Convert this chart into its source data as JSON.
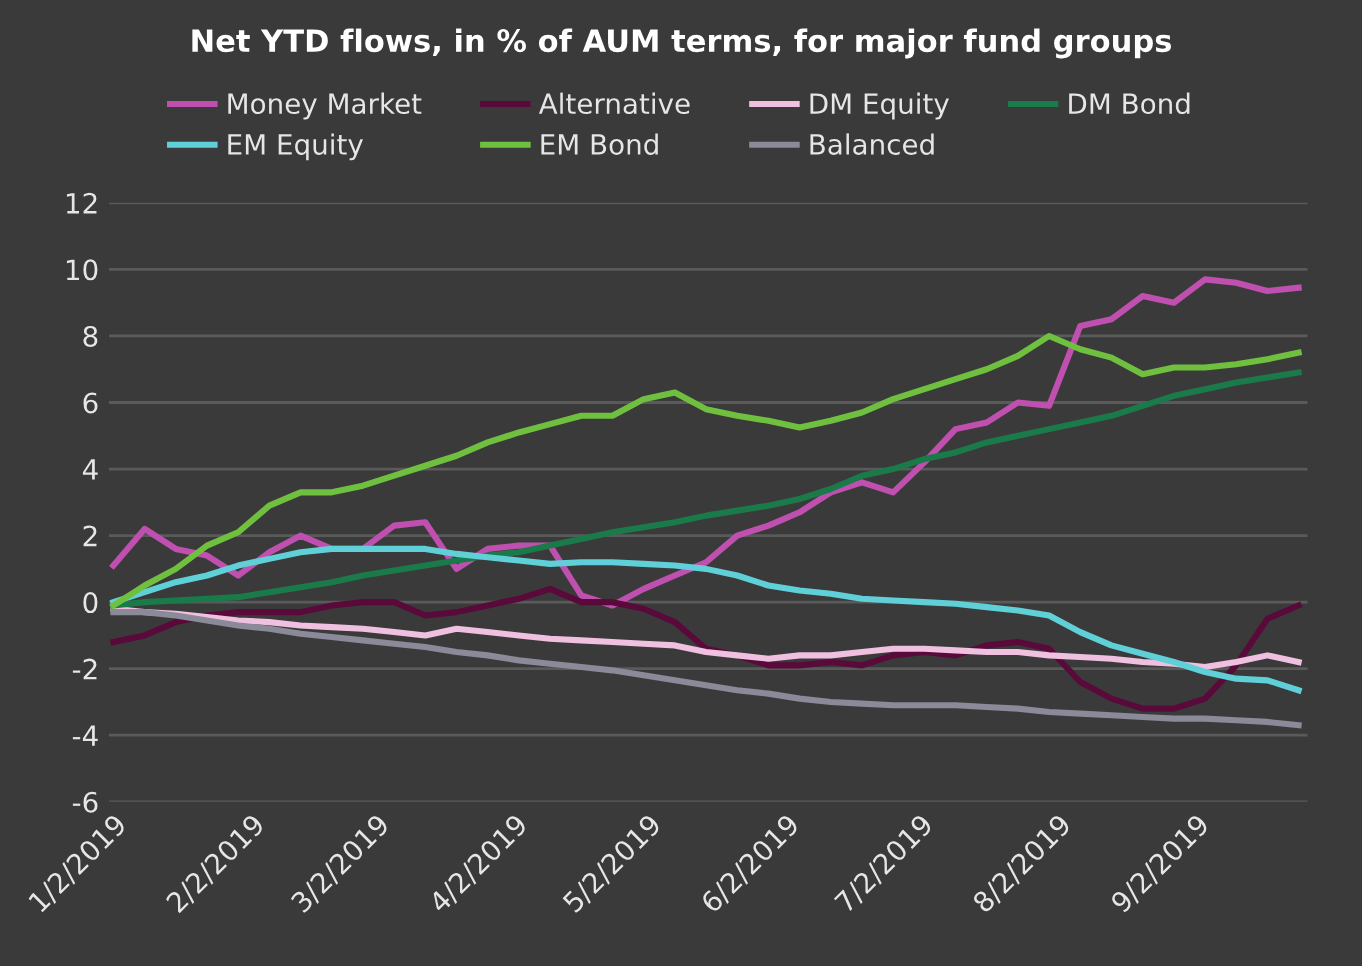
{
  "chart_data": {
    "type": "line",
    "title": "Net YTD flows, in % of AUM terms, for major fund groups",
    "x": [
      "2019-01-02",
      "2019-01-09",
      "2019-01-16",
      "2019-01-23",
      "2019-01-30",
      "2019-02-06",
      "2019-02-13",
      "2019-02-20",
      "2019-02-27",
      "2019-03-06",
      "2019-03-13",
      "2019-03-20",
      "2019-03-27",
      "2019-04-03",
      "2019-04-10",
      "2019-04-17",
      "2019-04-24",
      "2019-05-01",
      "2019-05-08",
      "2019-05-15",
      "2019-05-22",
      "2019-05-29",
      "2019-06-05",
      "2019-06-12",
      "2019-06-19",
      "2019-06-26",
      "2019-07-03",
      "2019-07-10",
      "2019-07-17",
      "2019-07-24",
      "2019-07-31",
      "2019-08-07",
      "2019-08-14",
      "2019-08-21",
      "2019-08-28",
      "2019-09-04",
      "2019-09-11",
      "2019-09-18",
      "2019-09-25"
    ],
    "series": [
      {
        "name": "Money Market",
        "color": "#c050b0",
        "values": [
          1.1,
          2.2,
          1.6,
          1.4,
          0.8,
          1.5,
          2.0,
          1.6,
          1.6,
          2.3,
          2.4,
          1.0,
          1.6,
          1.7,
          1.7,
          0.2,
          -0.1,
          0.4,
          0.8,
          1.2,
          2.0,
          2.3,
          2.7,
          3.3,
          3.6,
          3.3,
          4.2,
          5.2,
          5.4,
          6.0,
          5.9,
          8.3,
          8.5,
          9.2,
          9.0,
          9.7,
          9.6,
          9.35,
          9.45
        ]
      },
      {
        "name": "Alternative",
        "color": "#5a0a3a",
        "values": [
          -1.2,
          -1.0,
          -0.6,
          -0.4,
          -0.3,
          -0.3,
          -0.3,
          -0.1,
          0.0,
          0.0,
          -0.4,
          -0.3,
          -0.1,
          0.1,
          0.4,
          0.0,
          0.0,
          -0.2,
          -0.6,
          -1.4,
          -1.6,
          -1.9,
          -1.9,
          -1.8,
          -1.9,
          -1.6,
          -1.5,
          -1.6,
          -1.3,
          -1.2,
          -1.4,
          -2.4,
          -2.9,
          -3.2,
          -3.2,
          -2.9,
          -1.9,
          -0.5,
          -0.1
        ]
      },
      {
        "name": "DM Equity",
        "color": "#f0c0e0",
        "values": [
          -0.2,
          -0.3,
          -0.35,
          -0.45,
          -0.55,
          -0.6,
          -0.7,
          -0.75,
          -0.8,
          -0.9,
          -1.0,
          -0.8,
          -0.9,
          -1.0,
          -1.1,
          -1.15,
          -1.2,
          -1.25,
          -1.3,
          -1.5,
          -1.6,
          -1.7,
          -1.6,
          -1.6,
          -1.5,
          -1.4,
          -1.4,
          -1.45,
          -1.5,
          -1.5,
          -1.6,
          -1.65,
          -1.7,
          -1.8,
          -1.85,
          -1.95,
          -1.8,
          -1.6,
          -1.8
        ]
      },
      {
        "name": "DM Bond",
        "color": "#1a7a4a",
        "values": [
          -0.1,
          0.0,
          0.05,
          0.1,
          0.15,
          0.3,
          0.45,
          0.6,
          0.8,
          0.95,
          1.1,
          1.25,
          1.4,
          1.5,
          1.7,
          1.9,
          2.1,
          2.25,
          2.4,
          2.6,
          2.75,
          2.9,
          3.1,
          3.4,
          3.8,
          4.0,
          4.3,
          4.5,
          4.8,
          5.0,
          5.2,
          5.4,
          5.6,
          5.9,
          6.2,
          6.4,
          6.6,
          6.75,
          6.9
        ]
      },
      {
        "name": "EM Equity",
        "color": "#60d0d8",
        "values": [
          0.0,
          0.3,
          0.6,
          0.8,
          1.1,
          1.3,
          1.5,
          1.6,
          1.6,
          1.6,
          1.6,
          1.45,
          1.35,
          1.25,
          1.15,
          1.2,
          1.2,
          1.15,
          1.1,
          1.0,
          0.8,
          0.5,
          0.35,
          0.25,
          0.1,
          0.05,
          0.0,
          -0.05,
          -0.15,
          -0.25,
          -0.4,
          -0.9,
          -1.3,
          -1.55,
          -1.8,
          -2.1,
          -2.3,
          -2.35,
          -2.65
        ]
      },
      {
        "name": "EM Bond",
        "color": "#70c040",
        "values": [
          -0.1,
          0.5,
          1.0,
          1.7,
          2.1,
          2.9,
          3.3,
          3.3,
          3.5,
          3.8,
          4.1,
          4.4,
          4.8,
          5.1,
          5.35,
          5.6,
          5.6,
          6.1,
          6.3,
          5.8,
          5.6,
          5.45,
          5.25,
          5.45,
          5.7,
          6.1,
          6.4,
          6.7,
          7.0,
          7.4,
          8.0,
          7.6,
          7.35,
          6.85,
          7.05,
          7.05,
          7.15,
          7.3,
          7.5
        ]
      },
      {
        "name": "Balanced",
        "color": "#8a8a98",
        "values": [
          -0.3,
          -0.3,
          -0.4,
          -0.55,
          -0.7,
          -0.8,
          -0.95,
          -1.05,
          -1.15,
          -1.25,
          -1.35,
          -1.5,
          -1.6,
          -1.75,
          -1.85,
          -1.95,
          -2.05,
          -2.2,
          -2.35,
          -2.5,
          -2.65,
          -2.75,
          -2.9,
          -3.0,
          -3.05,
          -3.1,
          -3.1,
          -3.1,
          -3.15,
          -3.2,
          -3.3,
          -3.35,
          -3.4,
          -3.45,
          -3.5,
          -3.5,
          -3.55,
          -3.6,
          -3.7
        ]
      }
    ],
    "xlim": [
      "2019-01-01",
      "2019-09-27"
    ],
    "xticks": [
      {
        "value": "2019-01-02",
        "label": "1/2/2019"
      },
      {
        "value": "2019-02-02",
        "label": "2/2/2019"
      },
      {
        "value": "2019-03-02",
        "label": "3/2/2019"
      },
      {
        "value": "2019-04-02",
        "label": "4/2/2019"
      },
      {
        "value": "2019-05-02",
        "label": "5/2/2019"
      },
      {
        "value": "2019-06-02",
        "label": "6/2/2019"
      },
      {
        "value": "2019-07-02",
        "label": "7/2/2019"
      },
      {
        "value": "2019-08-02",
        "label": "8/2/2019"
      },
      {
        "value": "2019-09-02",
        "label": "9/2/2019"
      }
    ],
    "ylim": [
      -6,
      12
    ],
    "yticks": [
      -6,
      -4,
      -2,
      0,
      2,
      4,
      6,
      8,
      10,
      12
    ],
    "grid": "y",
    "legend": "top",
    "marker": "none",
    "line_style": "solid"
  }
}
